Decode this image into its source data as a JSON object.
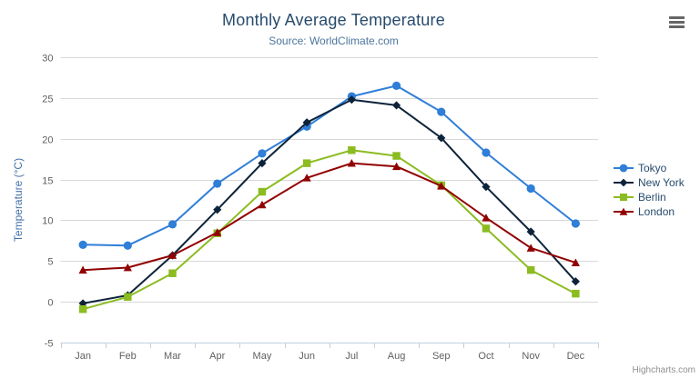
{
  "header": {
    "menu_icon": "hamburger-menu-icon"
  },
  "credits": "Highcharts.com",
  "colors": {
    "title": "#274b6d",
    "subtitle": "#4d759e",
    "axis_title": "#4572a7",
    "tick_label": "#606060",
    "legend": "#274b6d",
    "credits": "#909090",
    "menu": "#666666",
    "grid": "#d8d8d8",
    "axis_line": "#c0d0e0"
  },
  "chart_data": {
    "type": "line",
    "title": "Monthly Average Temperature",
    "subtitle": "Source: WorldClimate.com",
    "xlabel": "",
    "ylabel": "Temperature (°C)",
    "ylim": [
      -5,
      30
    ],
    "ytick_step": 5,
    "yticks": [
      -5,
      0,
      5,
      10,
      15,
      20,
      25,
      30
    ],
    "grid": "horizontal",
    "legend_position": "right",
    "categories": [
      "Jan",
      "Feb",
      "Mar",
      "Apr",
      "May",
      "Jun",
      "Jul",
      "Aug",
      "Sep",
      "Oct",
      "Nov",
      "Dec"
    ],
    "series": [
      {
        "name": "Tokyo",
        "color": "#2f7ed8",
        "marker": "circle",
        "values": [
          7.0,
          6.9,
          9.5,
          14.5,
          18.2,
          21.5,
          25.2,
          26.5,
          23.3,
          18.3,
          13.9,
          9.6
        ]
      },
      {
        "name": "New York",
        "color": "#0d233a",
        "marker": "diamond",
        "values": [
          -0.2,
          0.8,
          5.7,
          11.3,
          17.0,
          22.0,
          24.8,
          24.1,
          20.1,
          14.1,
          8.6,
          2.5
        ]
      },
      {
        "name": "Berlin",
        "color": "#8bbc21",
        "marker": "square",
        "values": [
          -0.9,
          0.6,
          3.5,
          8.4,
          13.5,
          17.0,
          18.6,
          17.9,
          14.3,
          9.0,
          3.9,
          1.0
        ]
      },
      {
        "name": "London",
        "color": "#910000",
        "marker": "triangle",
        "values": [
          3.9,
          4.2,
          5.7,
          8.5,
          11.9,
          15.2,
          17.0,
          16.6,
          14.2,
          10.3,
          6.6,
          4.8
        ]
      }
    ]
  }
}
